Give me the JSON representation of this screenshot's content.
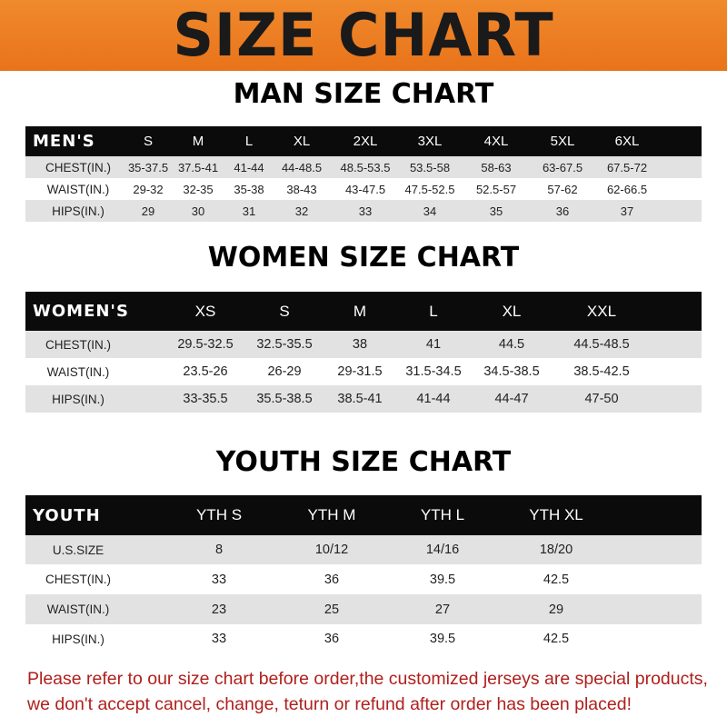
{
  "banner_title": "SIZE CHART",
  "men": {
    "title": "MAN SIZE CHART",
    "header": [
      "MEN'S",
      "S",
      "M",
      "L",
      "XL",
      "2XL",
      "3XL",
      "4XL",
      "5XL",
      "6XL"
    ],
    "rows": [
      [
        "CHEST(IN.)",
        "35-37.5",
        "37.5-41",
        "41-44",
        "44-48.5",
        "48.5-53.5",
        "53.5-58",
        "58-63",
        "63-67.5",
        "67.5-72"
      ],
      [
        "WAIST(IN.)",
        "29-32",
        "32-35",
        "35-38",
        "38-43",
        "43-47.5",
        "47.5-52.5",
        "52.5-57",
        "57-62",
        "62-66.5"
      ],
      [
        "HIPS(IN.)",
        "29",
        "30",
        "31",
        "32",
        "33",
        "34",
        "35",
        "36",
        "37"
      ]
    ]
  },
  "women": {
    "title": "WOMEN SIZE CHART",
    "header": [
      "WOMEN'S",
      "XS",
      "S",
      "M",
      "L",
      "XL",
      "XXL"
    ],
    "rows": [
      [
        "CHEST(IN.)",
        "29.5-32.5",
        "32.5-35.5",
        "38",
        "41",
        "44.5",
        "44.5-48.5"
      ],
      [
        "WAIST(IN.)",
        "23.5-26",
        "26-29",
        "29-31.5",
        "31.5-34.5",
        "34.5-38.5",
        "38.5-42.5"
      ],
      [
        "HIPS(IN.)",
        "33-35.5",
        "35.5-38.5",
        "38.5-41",
        "41-44",
        "44-47",
        "47-50"
      ]
    ]
  },
  "youth": {
    "title": "YOUTH SIZE CHART",
    "header": [
      "YOUTH",
      "YTH S",
      "YTH M",
      "YTH L",
      "YTH XL"
    ],
    "rows": [
      [
        "U.S.SIZE",
        "8",
        "10/12",
        "14/16",
        "18/20"
      ],
      [
        "CHEST(IN.)",
        "33",
        "36",
        "39.5",
        "42.5"
      ],
      [
        "WAIST(IN.)",
        "23",
        "25",
        "27",
        "29"
      ],
      [
        "HIPS(IN.)",
        "33",
        "36",
        "39.5",
        "42.5"
      ]
    ]
  },
  "notice": {
    "line1": "Please refer to our size chart before order,the customized jerseys are special products,",
    "line2": "we don't accept cancel, change, teturn or refund after order has been placed!"
  },
  "colors": {
    "banner": "#e9731a",
    "header_row": "#0b0b0b",
    "stripe": "#e2e2e2",
    "notice": "#b0201c"
  }
}
